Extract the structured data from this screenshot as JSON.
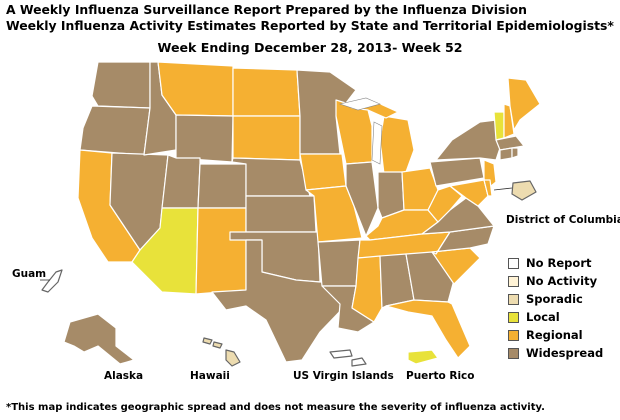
{
  "header": {
    "title_line1": "A Weekly Influenza Surveillance Report Prepared by the Influenza Division",
    "title_line2": "Weekly Influenza Activity Estimates Reported by State and Territorial Epidemiologists*",
    "week_line": "Week Ending December 28, 2013- Week 52"
  },
  "colors": {
    "no_report": "#ffffff",
    "no_activity": "#fff3d6",
    "sporadic": "#eddcb0",
    "local": "#e8e23a",
    "regional": "#f5b032",
    "widespread": "#a68b68",
    "outline": "#ffffff",
    "water": "#ffffff"
  },
  "legend": [
    {
      "key": "no_report",
      "label": "No Report"
    },
    {
      "key": "no_activity",
      "label": "No Activity"
    },
    {
      "key": "sporadic",
      "label": "Sporadic"
    },
    {
      "key": "local",
      "label": "Local"
    },
    {
      "key": "regional",
      "label": "Regional"
    },
    {
      "key": "widespread",
      "label": "Widespread"
    }
  ],
  "territory_labels": {
    "district_of_columbia": "District of Columbia",
    "guam": "Guam",
    "alaska": "Alaska",
    "hawaii": "Hawaii",
    "us_virgin_islands": "US Virgin Islands",
    "puerto_rico": "Puerto Rico"
  },
  "activity": {
    "WA": "widespread",
    "OR": "widespread",
    "CA": "regional",
    "NV": "widespread",
    "ID": "widespread",
    "MT": "regional",
    "WY": "widespread",
    "UT": "widespread",
    "AZ": "local",
    "CO": "widespread",
    "NM": "regional",
    "ND": "regional",
    "SD": "regional",
    "NE": "widespread",
    "KS": "widespread",
    "OK": "widespread",
    "TX": "widespread",
    "MN": "widespread",
    "IA": "regional",
    "MO": "regional",
    "AR": "widespread",
    "LA": "widespread",
    "WI": "regional",
    "IL": "widespread",
    "MI": "regional",
    "IN": "widespread",
    "OH": "regional",
    "KY": "regional",
    "TN": "regional",
    "MS": "regional",
    "AL": "widespread",
    "GA": "widespread",
    "FL": "regional",
    "SC": "regional",
    "NC": "widespread",
    "VA": "widespread",
    "WV": "regional",
    "PA": "widespread",
    "NY": "widespread",
    "NJ": "regional",
    "DE": "regional",
    "MD": "regional",
    "CT": "widespread",
    "RI": "widespread",
    "MA": "widespread",
    "VT": "local",
    "NH": "regional",
    "ME": "regional",
    "AK": "widespread",
    "HI": "sporadic",
    "DC": "sporadic",
    "GU": "no_report",
    "VI": "no_report",
    "PR": "local"
  },
  "footnote": "*This map indicates geographic spread and does not measure the severity of influenza activity."
}
